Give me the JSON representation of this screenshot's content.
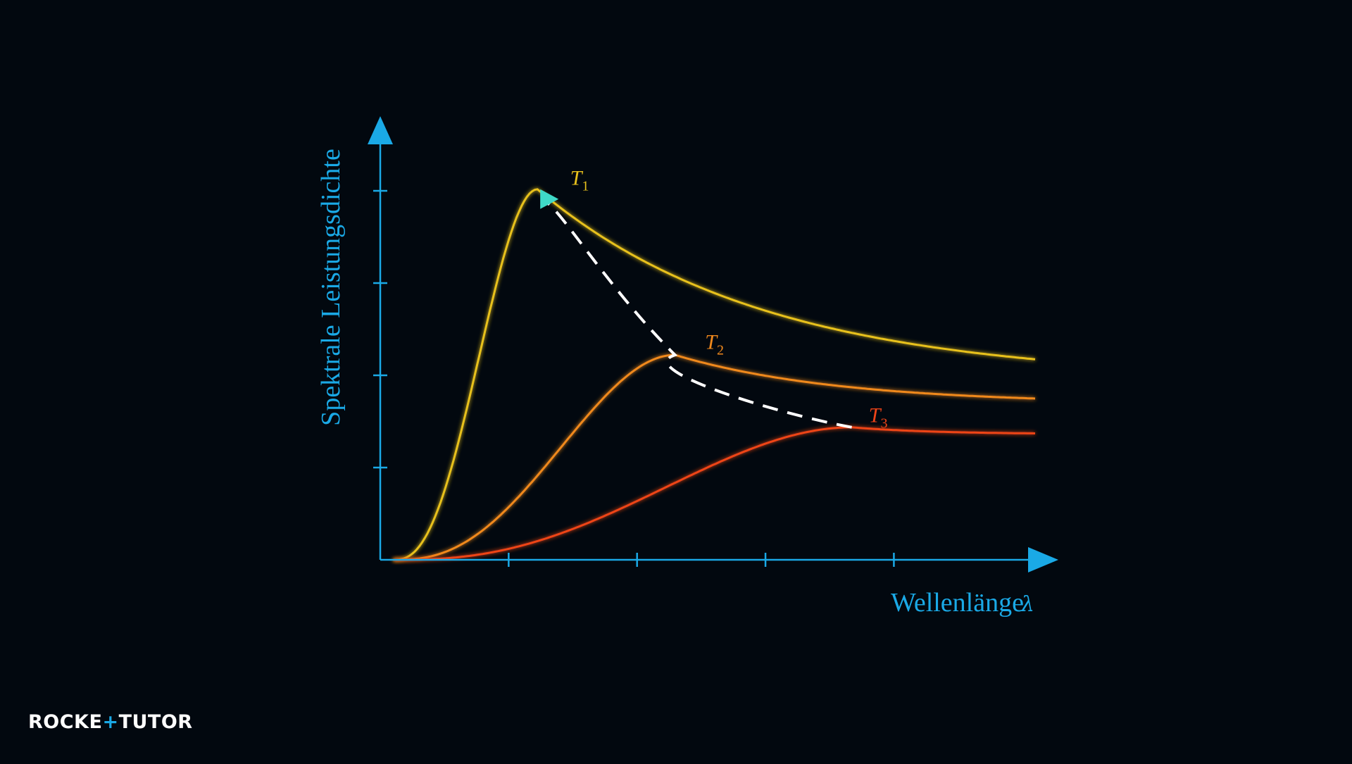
{
  "chart_data": {
    "type": "line",
    "xlabel": "Wellenlänge",
    "xlabel_symbol": "λ",
    "ylabel": "Spektrale Leistungsdichte",
    "grid": false,
    "x_ticks": 4,
    "y_ticks": 4,
    "x_range": [
      0,
      5
    ],
    "y_range": [
      0,
      4.2
    ],
    "series": [
      {
        "name": "T",
        "subscript": "1",
        "color": "#e8c11c",
        "peak_x": 1.2,
        "peak_y": 4.25,
        "end_y": 2.3,
        "label_anchor_x": 1.45,
        "label_anchor_y": 4.3
      },
      {
        "name": "T",
        "subscript": "2",
        "color": "#f0891c",
        "peak_x": 2.25,
        "peak_y": 2.35,
        "end_y": 1.85,
        "label_anchor_x": 2.48,
        "label_anchor_y": 2.42
      },
      {
        "name": "T",
        "subscript": "3",
        "color": "#ee4418",
        "peak_x": 3.6,
        "peak_y": 1.52,
        "end_y": 1.45,
        "label_anchor_x": 3.73,
        "label_anchor_y": 1.58
      }
    ],
    "wien_line": {
      "style": "dashed",
      "color": "#ffffff",
      "arrow_color": "#3fd9c8",
      "direction": "toward shorter wavelength"
    }
  },
  "colors": {
    "axis": "#1aa9e6",
    "background": "#02080f"
  },
  "brand": {
    "left": "ROCKE",
    "plus": "+",
    "middle": "TUTO",
    "right": "R"
  }
}
